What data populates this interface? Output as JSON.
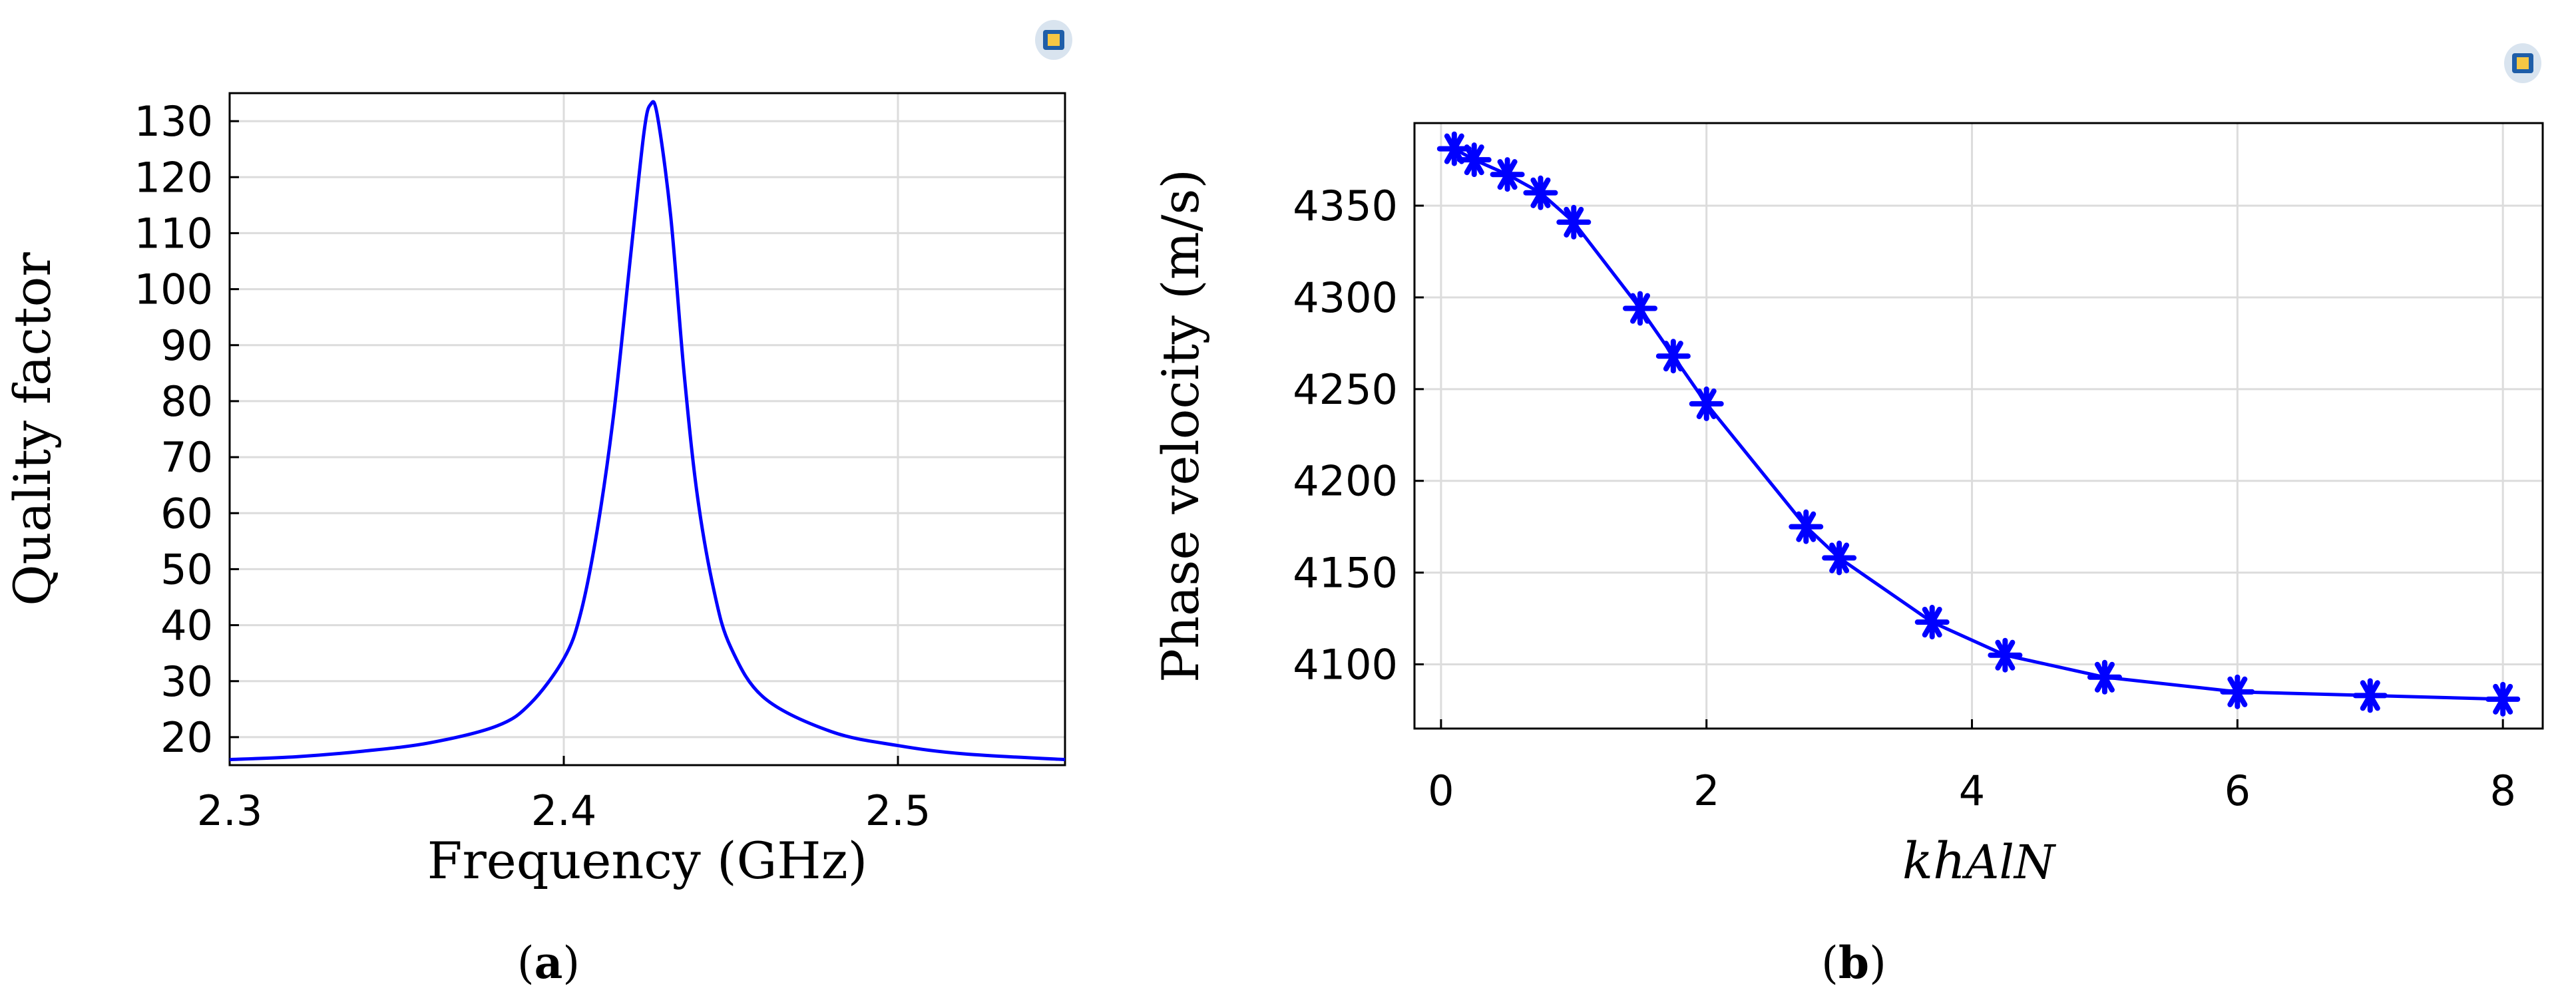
{
  "chart_data": [
    {
      "type": "line",
      "panel_label": "a",
      "xlabel": "Frequency (GHz)",
      "ylabel": "Quality factor",
      "xlim": [
        2.3,
        2.55
      ],
      "ylim": [
        15,
        135
      ],
      "xticks": [
        2.3,
        2.4,
        2.5
      ],
      "yticks": [
        20,
        30,
        40,
        50,
        60,
        70,
        80,
        90,
        100,
        110,
        120,
        130
      ],
      "grid": true,
      "legend": "none",
      "line_color": "#0000ff",
      "series": [
        {
          "x": [
            2.3,
            2.32,
            2.34,
            2.36,
            2.38,
            2.39,
            2.4,
            2.405,
            2.41,
            2.415,
            2.42,
            2.424,
            2.426,
            2.428,
            2.432,
            2.436,
            2.44,
            2.445,
            2.45,
            2.46,
            2.48,
            2.5,
            2.52,
            2.55
          ],
          "values": [
            16,
            16.5,
            17.5,
            19,
            22,
            26,
            34,
            42,
            57,
            78,
            106,
            128,
            133,
            131,
            113,
            85,
            63,
            46,
            36,
            27,
            21,
            18.5,
            17,
            16
          ]
        }
      ]
    },
    {
      "type": "line",
      "panel_label": "b",
      "xlabel": "kh",
      "xlabel_sub": "AlN",
      "ylabel": "Phase velocity (m/s)",
      "xlim": [
        -0.2,
        8.3
      ],
      "ylim": [
        4065,
        4395
      ],
      "xticks": [
        0,
        2,
        4,
        6,
        8
      ],
      "yticks": [
        4100,
        4150,
        4200,
        4250,
        4300,
        4350
      ],
      "grid": true,
      "legend": "none",
      "line_color": "#0000ff",
      "marker": "asterisk",
      "series": [
        {
          "x": [
            0.1,
            0.25,
            0.5,
            0.75,
            1.0,
            1.5,
            1.75,
            2.0,
            2.75,
            3.0,
            3.7,
            4.25,
            5.0,
            6.0,
            7.0,
            8.0
          ],
          "values": [
            4381,
            4375,
            4367,
            4357,
            4341,
            4294,
            4268,
            4242,
            4175,
            4158,
            4123,
            4105,
            4093,
            4085,
            4083,
            4081
          ]
        }
      ]
    }
  ]
}
